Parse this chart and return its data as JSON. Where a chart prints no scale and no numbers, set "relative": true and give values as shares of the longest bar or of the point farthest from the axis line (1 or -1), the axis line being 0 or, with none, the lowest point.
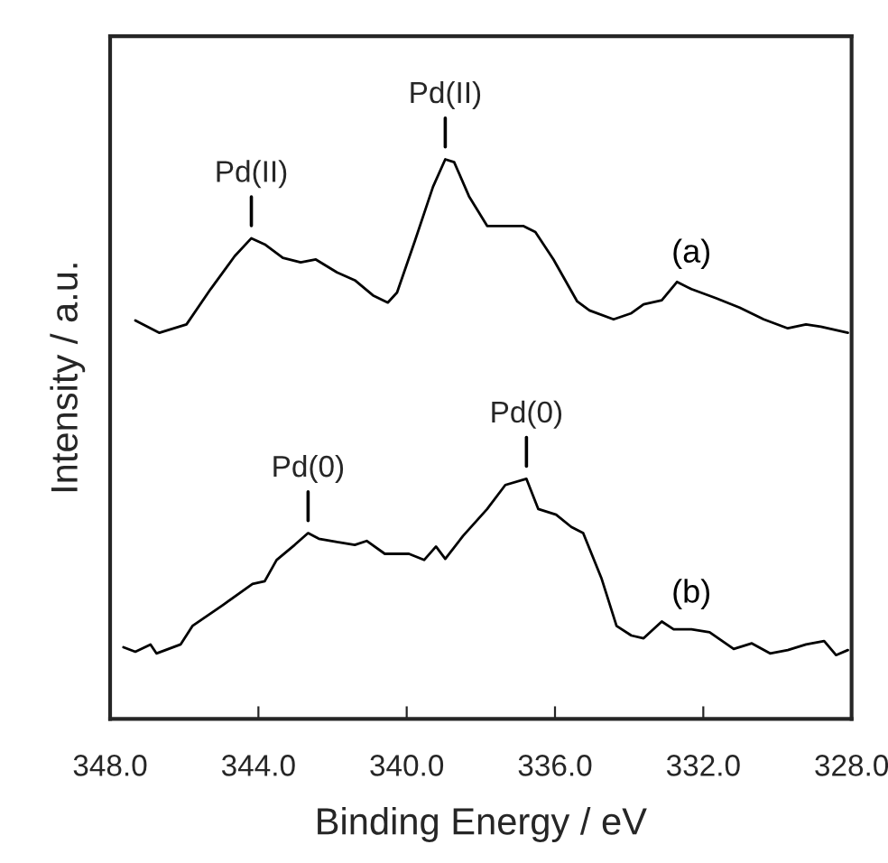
{
  "chart_data": {
    "type": "line",
    "relative": true,
    "xlabel": "Binding Energy / eV",
    "ylabel": "Intensity / a.u.",
    "xlim": [
      348,
      328
    ],
    "xticks": [
      {
        "value": 348,
        "label": "348.0"
      },
      {
        "value": 344,
        "label": "344.0"
      },
      {
        "value": 340,
        "label": "340.0"
      },
      {
        "value": 336,
        "label": "336.0"
      },
      {
        "value": 332,
        "label": "332.0"
      },
      {
        "value": 328,
        "label": "328.0"
      }
    ],
    "tick_labels": "x",
    "grid": false,
    "legend": false,
    "marker": "none",
    "line_style": "solid",
    "series": [
      {
        "name": "(a)",
        "color": "#000000",
        "x": [
          347.32,
          346.67,
          345.94,
          345.29,
          344.64,
          344.19,
          343.83,
          343.34,
          342.86,
          342.45,
          341.88,
          341.4,
          340.91,
          340.51,
          340.26,
          339.78,
          339.29,
          338.96,
          338.72,
          338.32,
          337.83,
          337.34,
          336.86,
          336.53,
          336.04,
          335.4,
          335.07,
          334.42,
          333.94,
          333.61,
          333.12,
          332.71,
          332.32,
          331.66,
          331.02,
          330.37,
          329.72,
          329.23,
          328.83,
          328.1
        ],
        "values": [
          0.712,
          0.69,
          0.705,
          0.768,
          0.827,
          0.859,
          0.848,
          0.824,
          0.816,
          0.821,
          0.798,
          0.784,
          0.757,
          0.744,
          0.762,
          0.854,
          0.951,
          1.0,
          0.995,
          0.934,
          0.881,
          0.881,
          0.881,
          0.87,
          0.821,
          0.746,
          0.73,
          0.714,
          0.725,
          0.741,
          0.748,
          0.781,
          0.768,
          0.752,
          0.735,
          0.714,
          0.698,
          0.705,
          0.701,
          0.69
        ]
      },
      {
        "name": "(b)",
        "color": "#000000",
        "x": [
          347.64,
          347.32,
          346.91,
          346.75,
          346.1,
          345.78,
          344.97,
          344.16,
          343.83,
          343.51,
          343.02,
          342.66,
          342.37,
          341.88,
          341.4,
          341.08,
          340.59,
          339.94,
          339.53,
          339.21,
          338.96,
          338.48,
          337.83,
          337.34,
          336.77,
          336.45,
          335.97,
          335.56,
          335.24,
          334.75,
          334.34,
          333.94,
          333.61,
          333.12,
          332.8,
          332.32,
          331.83,
          331.18,
          330.69,
          330.2,
          329.72,
          329.23,
          328.74,
          328.42,
          328.1
        ],
        "values": [
          0.128,
          0.12,
          0.133,
          0.117,
          0.133,
          0.166,
          0.203,
          0.241,
          0.246,
          0.284,
          0.311,
          0.332,
          0.322,
          0.316,
          0.311,
          0.318,
          0.295,
          0.295,
          0.284,
          0.308,
          0.286,
          0.327,
          0.375,
          0.418,
          0.429,
          0.375,
          0.365,
          0.343,
          0.332,
          0.252,
          0.166,
          0.149,
          0.144,
          0.174,
          0.16,
          0.16,
          0.155,
          0.125,
          0.135,
          0.117,
          0.123,
          0.133,
          0.139,
          0.114,
          0.123
        ]
      }
    ],
    "annotations": [
      {
        "text": "Pd(II)",
        "x": 344.19,
        "y": 0.859
      },
      {
        "text": "Pd(II)",
        "x": 338.96,
        "y": 1.0
      },
      {
        "text": "Pd(0)",
        "x": 342.66,
        "y": 0.332
      },
      {
        "text": "Pd(0)",
        "x": 336.77,
        "y": 0.429
      }
    ]
  }
}
